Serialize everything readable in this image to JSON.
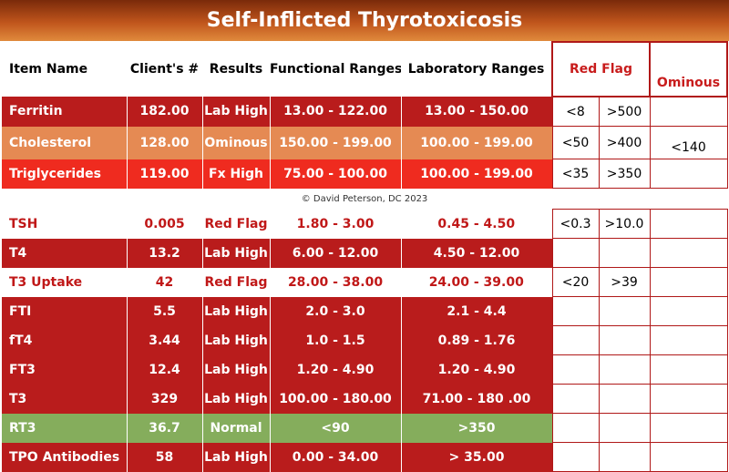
{
  "title": "Self-Inflicted Thyrotoxicosis",
  "headers": {
    "item": "Item Name",
    "client": "Client's #",
    "results": "Results",
    "functional": "Functional Ranges",
    "laboratory": "Laboratory Ranges",
    "red_flag": "Red Flag",
    "ominous": "Ominous"
  },
  "copyright": "© David Peterson, DC 2023",
  "colors": {
    "lab_high": "#b91c1c",
    "ominous": "#e58a53",
    "fx_high": "#ef2b1f",
    "red_flag_text": "#c01818",
    "normal": "#85ad5c"
  },
  "rows": [
    {
      "name": "Ferritin",
      "client": "182.00",
      "result": "Lab High",
      "functional": "13.00 - 122.00",
      "laboratory": "13.00 - 150.00",
      "flag_low": "<8",
      "flag_high": ">500"
    },
    {
      "name": "Cholesterol",
      "client": "128.00",
      "result": "Ominous",
      "functional": "150.00 - 199.00",
      "laboratory": "100.00 - 199.00",
      "flag_low": "<50",
      "flag_high": ">400"
    },
    {
      "name": "Triglycerides",
      "client": "119.00",
      "result": "Fx High",
      "functional": "75.00 - 100.00",
      "laboratory": "100.00 - 199.00",
      "flag_low": "<35",
      "flag_high": ">350"
    },
    {
      "name": "TSH",
      "client": "0.005",
      "result": "Red Flag",
      "functional": "1.80 - 3.00",
      "laboratory": "0.45 - 4.50",
      "flag_low": "<0.3",
      "flag_high": ">10.0"
    },
    {
      "name": "T4",
      "client": "13.2",
      "result": "Lab High",
      "functional": "6.00 - 12.00",
      "laboratory": "4.50 - 12.00",
      "flag_low": "",
      "flag_high": ""
    },
    {
      "name": "T3 Uptake",
      "client": "42",
      "result": "Red Flag",
      "functional": "28.00 - 38.00",
      "laboratory": "24.00 - 39.00",
      "flag_low": "<20",
      "flag_high": ">39"
    },
    {
      "name": "FTI",
      "client": "5.5",
      "result": "Lab High",
      "functional": "2.0 - 3.0",
      "laboratory": "2.1 - 4.4",
      "flag_low": "",
      "flag_high": ""
    },
    {
      "name": "fT4",
      "client": "3.44",
      "result": "Lab High",
      "functional": "1.0 - 1.5",
      "laboratory": "0.89 - 1.76",
      "flag_low": "",
      "flag_high": ""
    },
    {
      "name": "FT3",
      "client": "12.4",
      "result": "Lab High",
      "functional": "1.20 - 4.90",
      "laboratory": "1.20 - 4.90",
      "flag_low": "",
      "flag_high": ""
    },
    {
      "name": "T3",
      "client": "329",
      "result": "Lab High",
      "functional": "100.00 - 180.00",
      "laboratory": "71.00 - 180 .00",
      "flag_low": "",
      "flag_high": ""
    },
    {
      "name": "RT3",
      "client": "36.7",
      "result": "Normal",
      "functional": "<90",
      "laboratory": ">350",
      "flag_low": "",
      "flag_high": ""
    },
    {
      "name": "TPO Antibodies",
      "client": "58",
      "result": "Lab High",
      "functional": "0.00 - 34.00",
      "laboratory": "> 35.00",
      "flag_low": "",
      "flag_high": ""
    }
  ],
  "ominous_cells": [
    {
      "value": ""
    },
    {
      "value": "<140"
    },
    {
      "value": ""
    },
    {
      "value": ""
    },
    {
      "value": ""
    },
    {
      "value": ""
    },
    {
      "value": ""
    },
    {
      "value": ""
    },
    {
      "value": ""
    },
    {
      "value": ""
    },
    {
      "value": ""
    },
    {
      "value": ""
    }
  ]
}
